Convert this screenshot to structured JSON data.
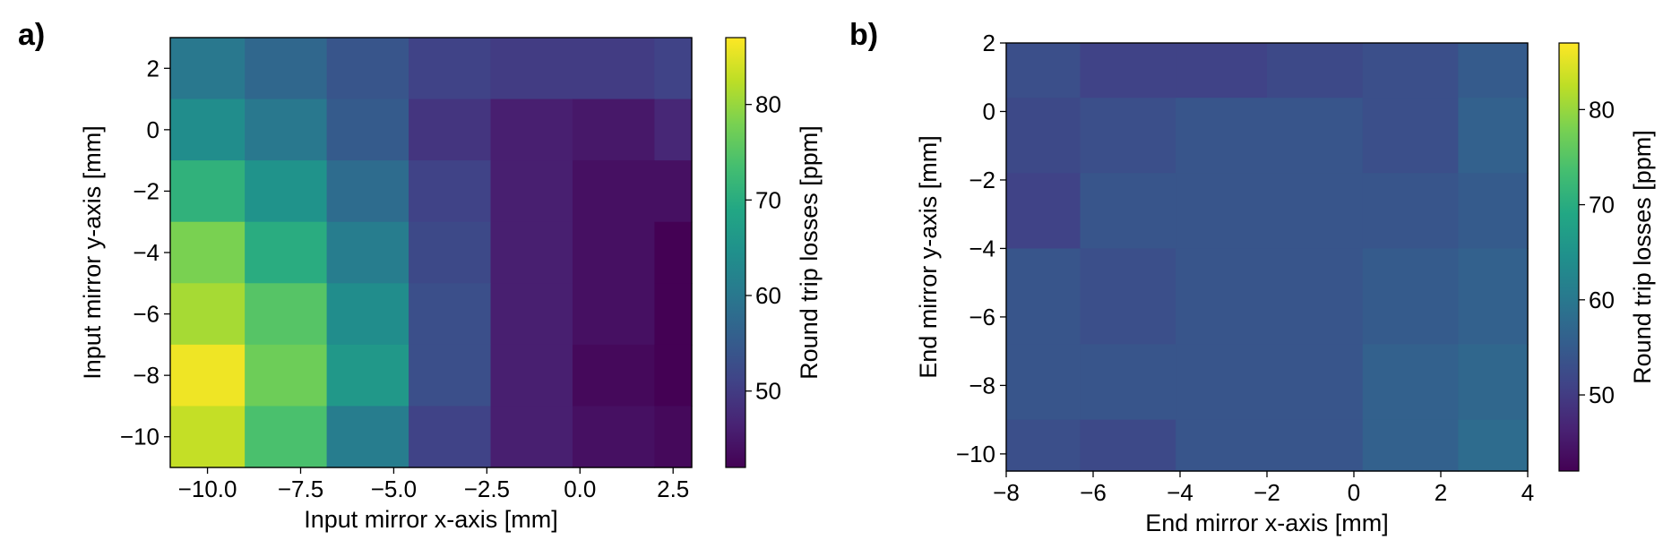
{
  "chart_data": [
    {
      "type": "heatmap",
      "panel_label": "a)",
      "xlabel": "Input mirror x-axis [mm]",
      "ylabel": "Input mirror y-axis [mm]",
      "colorbar_label": "Round trip losses [ppm]",
      "x_edges": [
        -11.0,
        -9.0,
        -6.8,
        -4.6,
        -2.4,
        -0.2,
        2.0,
        3.0
      ],
      "y_edges": [
        -11.0,
        -9.0,
        -7.0,
        -5.0,
        -3.0,
        -1.0,
        1.0,
        3.0
      ],
      "xticks": [
        -10.0,
        -7.5,
        -5.0,
        -2.5,
        0.0,
        2.5
      ],
      "xtick_labels": [
        "−10.0",
        "−7.5",
        "−5.0",
        "−2.5",
        "0.0",
        "2.5"
      ],
      "yticks": [
        -10,
        -8,
        -6,
        -4,
        -2,
        0,
        2
      ],
      "ytick_labels": [
        "−10",
        "−8",
        "−6",
        "−4",
        "−2",
        "0",
        "2"
      ],
      "color_range": [
        42,
        87
      ],
      "cbar_ticks": [
        50,
        60,
        70,
        80
      ],
      "cbar_tick_labels": [
        "50",
        "60",
        "70",
        "80"
      ],
      "values": [
        [
          60,
          57,
          54,
          51,
          50,
          50,
          51
        ],
        [
          64,
          60,
          55,
          49,
          46,
          45,
          47
        ],
        [
          71,
          65,
          58,
          51,
          46,
          44,
          44
        ],
        [
          78,
          70,
          61,
          52,
          46,
          44,
          42
        ],
        [
          81,
          75,
          64,
          53,
          46,
          44,
          41
        ],
        [
          86,
          77,
          66,
          53,
          46,
          43,
          41
        ],
        [
          83,
          74,
          61,
          51,
          46,
          44,
          43
        ]
      ]
    },
    {
      "type": "heatmap",
      "panel_label": "b)",
      "xlabel": "End mirror x-axis [mm]",
      "ylabel": "End mirror y-axis [mm]",
      "colorbar_label": "Round trip losses [ppm]",
      "x_edges": [
        -8.0,
        -6.3,
        -4.1,
        -2.0,
        0.2,
        2.4,
        4.0
      ],
      "y_edges": [
        -10.5,
        -9.0,
        -6.8,
        -4.0,
        -1.8,
        0.4,
        2.0
      ],
      "xticks": [
        -8,
        -6,
        -4,
        -2,
        0,
        2,
        4
      ],
      "xtick_labels": [
        "−8",
        "−6",
        "−4",
        "−2",
        "0",
        "2",
        "4"
      ],
      "yticks": [
        -10,
        -8,
        -6,
        -4,
        -2,
        0,
        2
      ],
      "ytick_labels": [
        "−10",
        "−8",
        "−6",
        "−4",
        "−2",
        "0",
        "2"
      ],
      "color_range": [
        42,
        87
      ],
      "cbar_ticks": [
        50,
        60,
        70,
        80
      ],
      "cbar_tick_labels": [
        "50",
        "60",
        "70",
        "80"
      ],
      "values": [
        [
          53,
          51,
          51,
          52,
          53,
          55
        ],
        [
          52,
          53,
          54,
          54,
          53,
          56
        ],
        [
          51,
          54,
          54,
          54,
          54,
          55
        ],
        [
          54,
          53,
          54,
          54,
          55,
          56
        ],
        [
          54,
          54,
          54,
          54,
          56,
          57
        ],
        [
          53,
          52,
          54,
          54,
          56,
          58
        ]
      ]
    }
  ]
}
